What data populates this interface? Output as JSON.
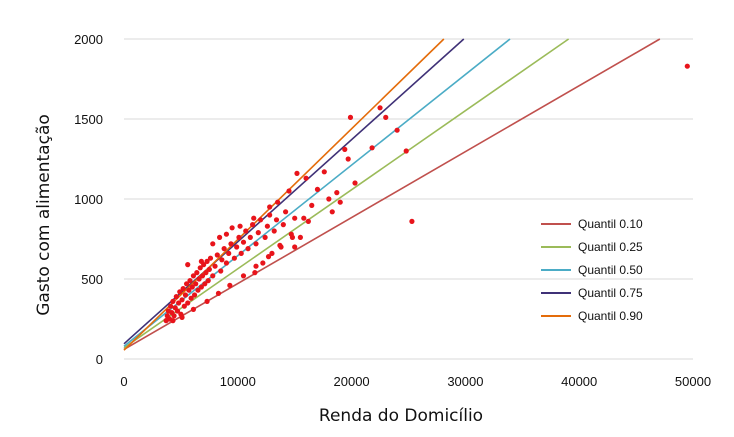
{
  "chart_data": {
    "type": "scatter",
    "title": "",
    "xlabel": "Renda do Domicílio",
    "ylabel": "Gasto com alimentação",
    "xlim": [
      0,
      50000
    ],
    "ylim": [
      0,
      2000
    ],
    "x_ticks": [
      0,
      10000,
      20000,
      30000,
      40000,
      50000
    ],
    "y_ticks": [
      0,
      500,
      1000,
      1500,
      2000
    ],
    "x_tick_labels": [
      "0",
      "10000",
      "20000",
      "30000",
      "40000",
      "50000"
    ],
    "y_tick_labels": [
      "0",
      "500",
      "1000",
      "1500",
      "2000"
    ],
    "grid": "horizontal",
    "legend_position": "right",
    "scatter_series": {
      "color": "#e8141b",
      "points": [
        [
          3800,
          270
        ],
        [
          3900,
          300
        ],
        [
          4000,
          250
        ],
        [
          4100,
          330
        ],
        [
          4200,
          290
        ],
        [
          4300,
          360
        ],
        [
          4400,
          270
        ],
        [
          4500,
          320
        ],
        [
          4600,
          390
        ],
        [
          4700,
          300
        ],
        [
          4800,
          350
        ],
        [
          4900,
          420
        ],
        [
          5000,
          280
        ],
        [
          5100,
          370
        ],
        [
          5200,
          440
        ],
        [
          5300,
          330
        ],
        [
          5400,
          400
        ],
        [
          5500,
          470
        ],
        [
          5600,
          350
        ],
        [
          5700,
          430
        ],
        [
          5800,
          490
        ],
        [
          5900,
          380
        ],
        [
          6000,
          450
        ],
        [
          6100,
          520
        ],
        [
          6200,
          400
        ],
        [
          6300,
          470
        ],
        [
          6400,
          540
        ],
        [
          6500,
          430
        ],
        [
          6600,
          500
        ],
        [
          6700,
          570
        ],
        [
          6800,
          450
        ],
        [
          6900,
          520
        ],
        [
          7000,
          590
        ],
        [
          7100,
          470
        ],
        [
          7200,
          540
        ],
        [
          7300,
          610
        ],
        [
          7400,
          490
        ],
        [
          7500,
          560
        ],
        [
          7600,
          630
        ],
        [
          7800,
          520
        ],
        [
          8000,
          580
        ],
        [
          8200,
          650
        ],
        [
          8400,
          760
        ],
        [
          8500,
          550
        ],
        [
          8600,
          620
        ],
        [
          8800,
          690
        ],
        [
          9000,
          600
        ],
        [
          9200,
          660
        ],
        [
          9400,
          720
        ],
        [
          9500,
          820
        ],
        [
          9700,
          630
        ],
        [
          9900,
          700
        ],
        [
          10100,
          760
        ],
        [
          10300,
          660
        ],
        [
          10500,
          730
        ],
        [
          10700,
          800
        ],
        [
          10900,
          690
        ],
        [
          11100,
          760
        ],
        [
          11300,
          840
        ],
        [
          11500,
          540
        ],
        [
          11600,
          720
        ],
        [
          11800,
          790
        ],
        [
          12000,
          870
        ],
        [
          12200,
          600
        ],
        [
          12400,
          760
        ],
        [
          12600,
          830
        ],
        [
          12800,
          900
        ],
        [
          13000,
          660
        ],
        [
          13200,
          800
        ],
        [
          13400,
          870
        ],
        [
          13500,
          980
        ],
        [
          13700,
          710
        ],
        [
          14000,
          840
        ],
        [
          14200,
          920
        ],
        [
          14500,
          1050
        ],
        [
          14700,
          780
        ],
        [
          15000,
          700
        ],
        [
          15000,
          880
        ],
        [
          15200,
          1160
        ],
        [
          15500,
          760
        ],
        [
          15800,
          880
        ],
        [
          16000,
          1130
        ],
        [
          16200,
          860
        ],
        [
          16500,
          960
        ],
        [
          17000,
          1060
        ],
        [
          17600,
          1170
        ],
        [
          18000,
          1000
        ],
        [
          18300,
          920
        ],
        [
          18700,
          1040
        ],
        [
          19000,
          980
        ],
        [
          19400,
          1310
        ],
        [
          19700,
          1250
        ],
        [
          19900,
          1510
        ],
        [
          20300,
          1100
        ],
        [
          21800,
          1320
        ],
        [
          22500,
          1570
        ],
        [
          23000,
          1510
        ],
        [
          24000,
          1430
        ],
        [
          24800,
          1300
        ],
        [
          25300,
          860
        ],
        [
          49500,
          1830
        ],
        [
          4300,
          240
        ],
        [
          5100,
          260
        ],
        [
          6100,
          310
        ],
        [
          7300,
          360
        ],
        [
          8300,
          410
        ],
        [
          9300,
          460
        ],
        [
          10500,
          520
        ],
        [
          11600,
          580
        ],
        [
          12700,
          640
        ],
        [
          13800,
          700
        ],
        [
          14800,
          760
        ],
        [
          3700,
          240
        ],
        [
          5600,
          590
        ],
        [
          6800,
          610
        ],
        [
          7800,
          720
        ],
        [
          9000,
          780
        ],
        [
          10200,
          830
        ],
        [
          11400,
          880
        ],
        [
          12800,
          950
        ]
      ]
    },
    "series": [
      {
        "name": "Quantil 0.10",
        "color": "#c0504d",
        "intercept": 60,
        "slope": 0.0412
      },
      {
        "name": "Quantil 0.25",
        "color": "#9bbb59",
        "intercept": 70,
        "slope": 0.0494
      },
      {
        "name": "Quantil 0.50",
        "color": "#4bacc6",
        "intercept": 80,
        "slope": 0.0566
      },
      {
        "name": "Quantil 0.75",
        "color": "#3f3177",
        "intercept": 95,
        "slope": 0.0638
      },
      {
        "name": "Quantil 0.90",
        "color": "#e46c0a",
        "intercept": 55,
        "slope": 0.0692
      }
    ]
  }
}
